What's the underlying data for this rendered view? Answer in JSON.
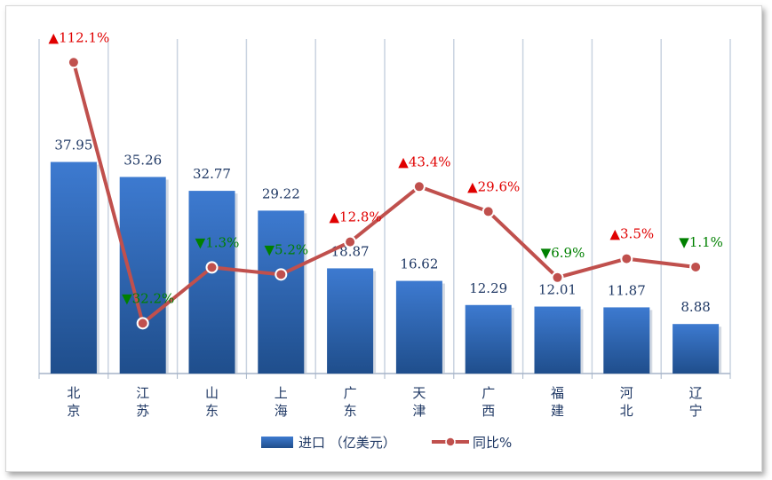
{
  "chart_data": {
    "type": "bar",
    "categories": [
      [
        "北",
        "京"
      ],
      [
        "江",
        "苏"
      ],
      [
        "山",
        "东"
      ],
      [
        "上",
        "海"
      ],
      [
        "广",
        "东"
      ],
      [
        "天",
        "津"
      ],
      [
        "广",
        "西"
      ],
      [
        "福",
        "建"
      ],
      [
        "河",
        "北"
      ],
      [
        "辽",
        "宁"
      ]
    ],
    "series": [
      {
        "name": "进口 （亿美元）",
        "type": "bar",
        "values": [
          37.95,
          35.26,
          32.77,
          29.22,
          18.87,
          16.62,
          12.29,
          12.01,
          11.87,
          8.88
        ],
        "labels": [
          "37.95",
          "35.26",
          "32.77",
          "29.22",
          "18.87",
          "16.62",
          "12.29",
          "12.01",
          "11.87",
          "8.88"
        ]
      },
      {
        "name": "同比%",
        "type": "line",
        "values": [
          112.1,
          -32.2,
          -1.3,
          -5.2,
          12.8,
          43.4,
          29.6,
          -6.9,
          3.5,
          -1.1
        ],
        "labels": [
          "112.1%",
          "32.2%",
          "1.3%",
          "5.2%",
          "12.8%",
          "43.4%",
          "29.6%",
          "6.9%",
          "3.5%",
          "1.1%"
        ]
      }
    ],
    "bar_ylim": [
      0,
      60
    ],
    "line_ylim": [
      -60,
      125
    ],
    "grid": "vertical",
    "legend": "bottom",
    "colors": {
      "bar": "#3a72c4",
      "bar_dark": "#1f4e8c",
      "line": "#c0504d",
      "up": "#e00000",
      "down": "#008000",
      "text": "#1f3864",
      "grid": "#c9d3e0"
    },
    "markers": {
      "up": "▲",
      "down": "▼"
    }
  }
}
